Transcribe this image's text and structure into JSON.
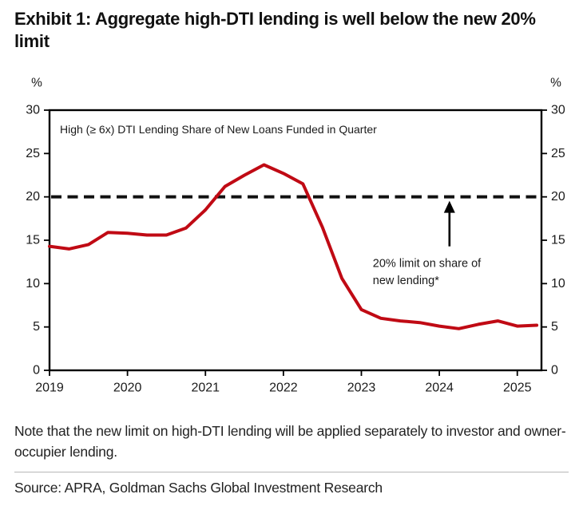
{
  "title": "Exhibit 1: Aggregate high-DTI lending is well below the new 20% limit",
  "note": "Note that the new limit on high-DTI lending will be applied separately to investor and owner-occupier lending.",
  "source": "Source: APRA, Goldman Sachs Global Investment Research",
  "colors": {
    "series_line": "#c00a14",
    "limit_line": "#111111",
    "axis": "#000000",
    "label_text": "#1a1a1a"
  },
  "chart_data": {
    "type": "line",
    "title": "High (≥ 6x) DTI Lending Share of New Loans Funded in Quarter",
    "y_unit_left": "%",
    "y_unit_right": "%",
    "ylim": [
      0,
      30
    ],
    "y_ticks": [
      0,
      5,
      10,
      15,
      20,
      25,
      30
    ],
    "x_ticks": [
      2019,
      2020,
      2021,
      2022,
      2023,
      2024,
      2025
    ],
    "x_axis_start_year": 2019.0,
    "x_axis_end_year": 2025.31,
    "grid": false,
    "legend_position": "none",
    "series": [
      {
        "name": "High (≥ 6x) DTI lending share of new loans",
        "frequency": "quarterly",
        "start_quarter": "2019Q1",
        "end_quarter": "2025Q2",
        "values": [
          14.3,
          14.0,
          14.5,
          15.9,
          15.8,
          15.6,
          15.6,
          16.4,
          18.5,
          21.2,
          22.5,
          23.7,
          22.7,
          21.5,
          16.5,
          10.6,
          7.0,
          6.0,
          5.7,
          5.5,
          5.1,
          4.8,
          5.3,
          5.7,
          5.1,
          5.2
        ]
      }
    ],
    "limit_line": {
      "value": 20,
      "style": "dashed"
    },
    "annotation": {
      "lines": [
        "20% limit on share of",
        "new lending*"
      ],
      "arrow_points_to_value": 20,
      "arrow_x_year": 2024.13
    }
  }
}
